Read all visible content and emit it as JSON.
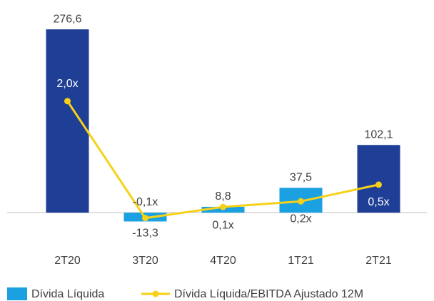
{
  "chart_data": {
    "type": "bar",
    "categories": [
      "2T20",
      "3T20",
      "4T20",
      "1T21",
      "2T21"
    ],
    "ylim": [
      -30,
      280
    ],
    "y2lim": [
      -0.36,
      3.33
    ],
    "series": [
      {
        "name": "Dívida Líquida",
        "type": "bar",
        "color": "#1ba1e2",
        "colors": [
          "#1f3e96",
          "#1ba1e2",
          "#1ba1e2",
          "#1ba1e2",
          "#1f3e96"
        ],
        "values": [
          276.6,
          -13.3,
          8.8,
          37.5,
          102.1
        ],
        "value_labels": [
          "276,6",
          "-13,3",
          "8,8",
          "37,5",
          "102,1"
        ]
      },
      {
        "name": "Dívida Líquida/EBITDA Ajustado 12M",
        "type": "line",
        "axis": "y2",
        "color": "#f7d117",
        "values": [
          2.0,
          -0.1,
          0.1,
          0.2,
          0.5
        ],
        "value_labels": [
          "2,0x",
          "-0,1x",
          "0,1x",
          "0,2x",
          "0,5x"
        ]
      }
    ]
  }
}
